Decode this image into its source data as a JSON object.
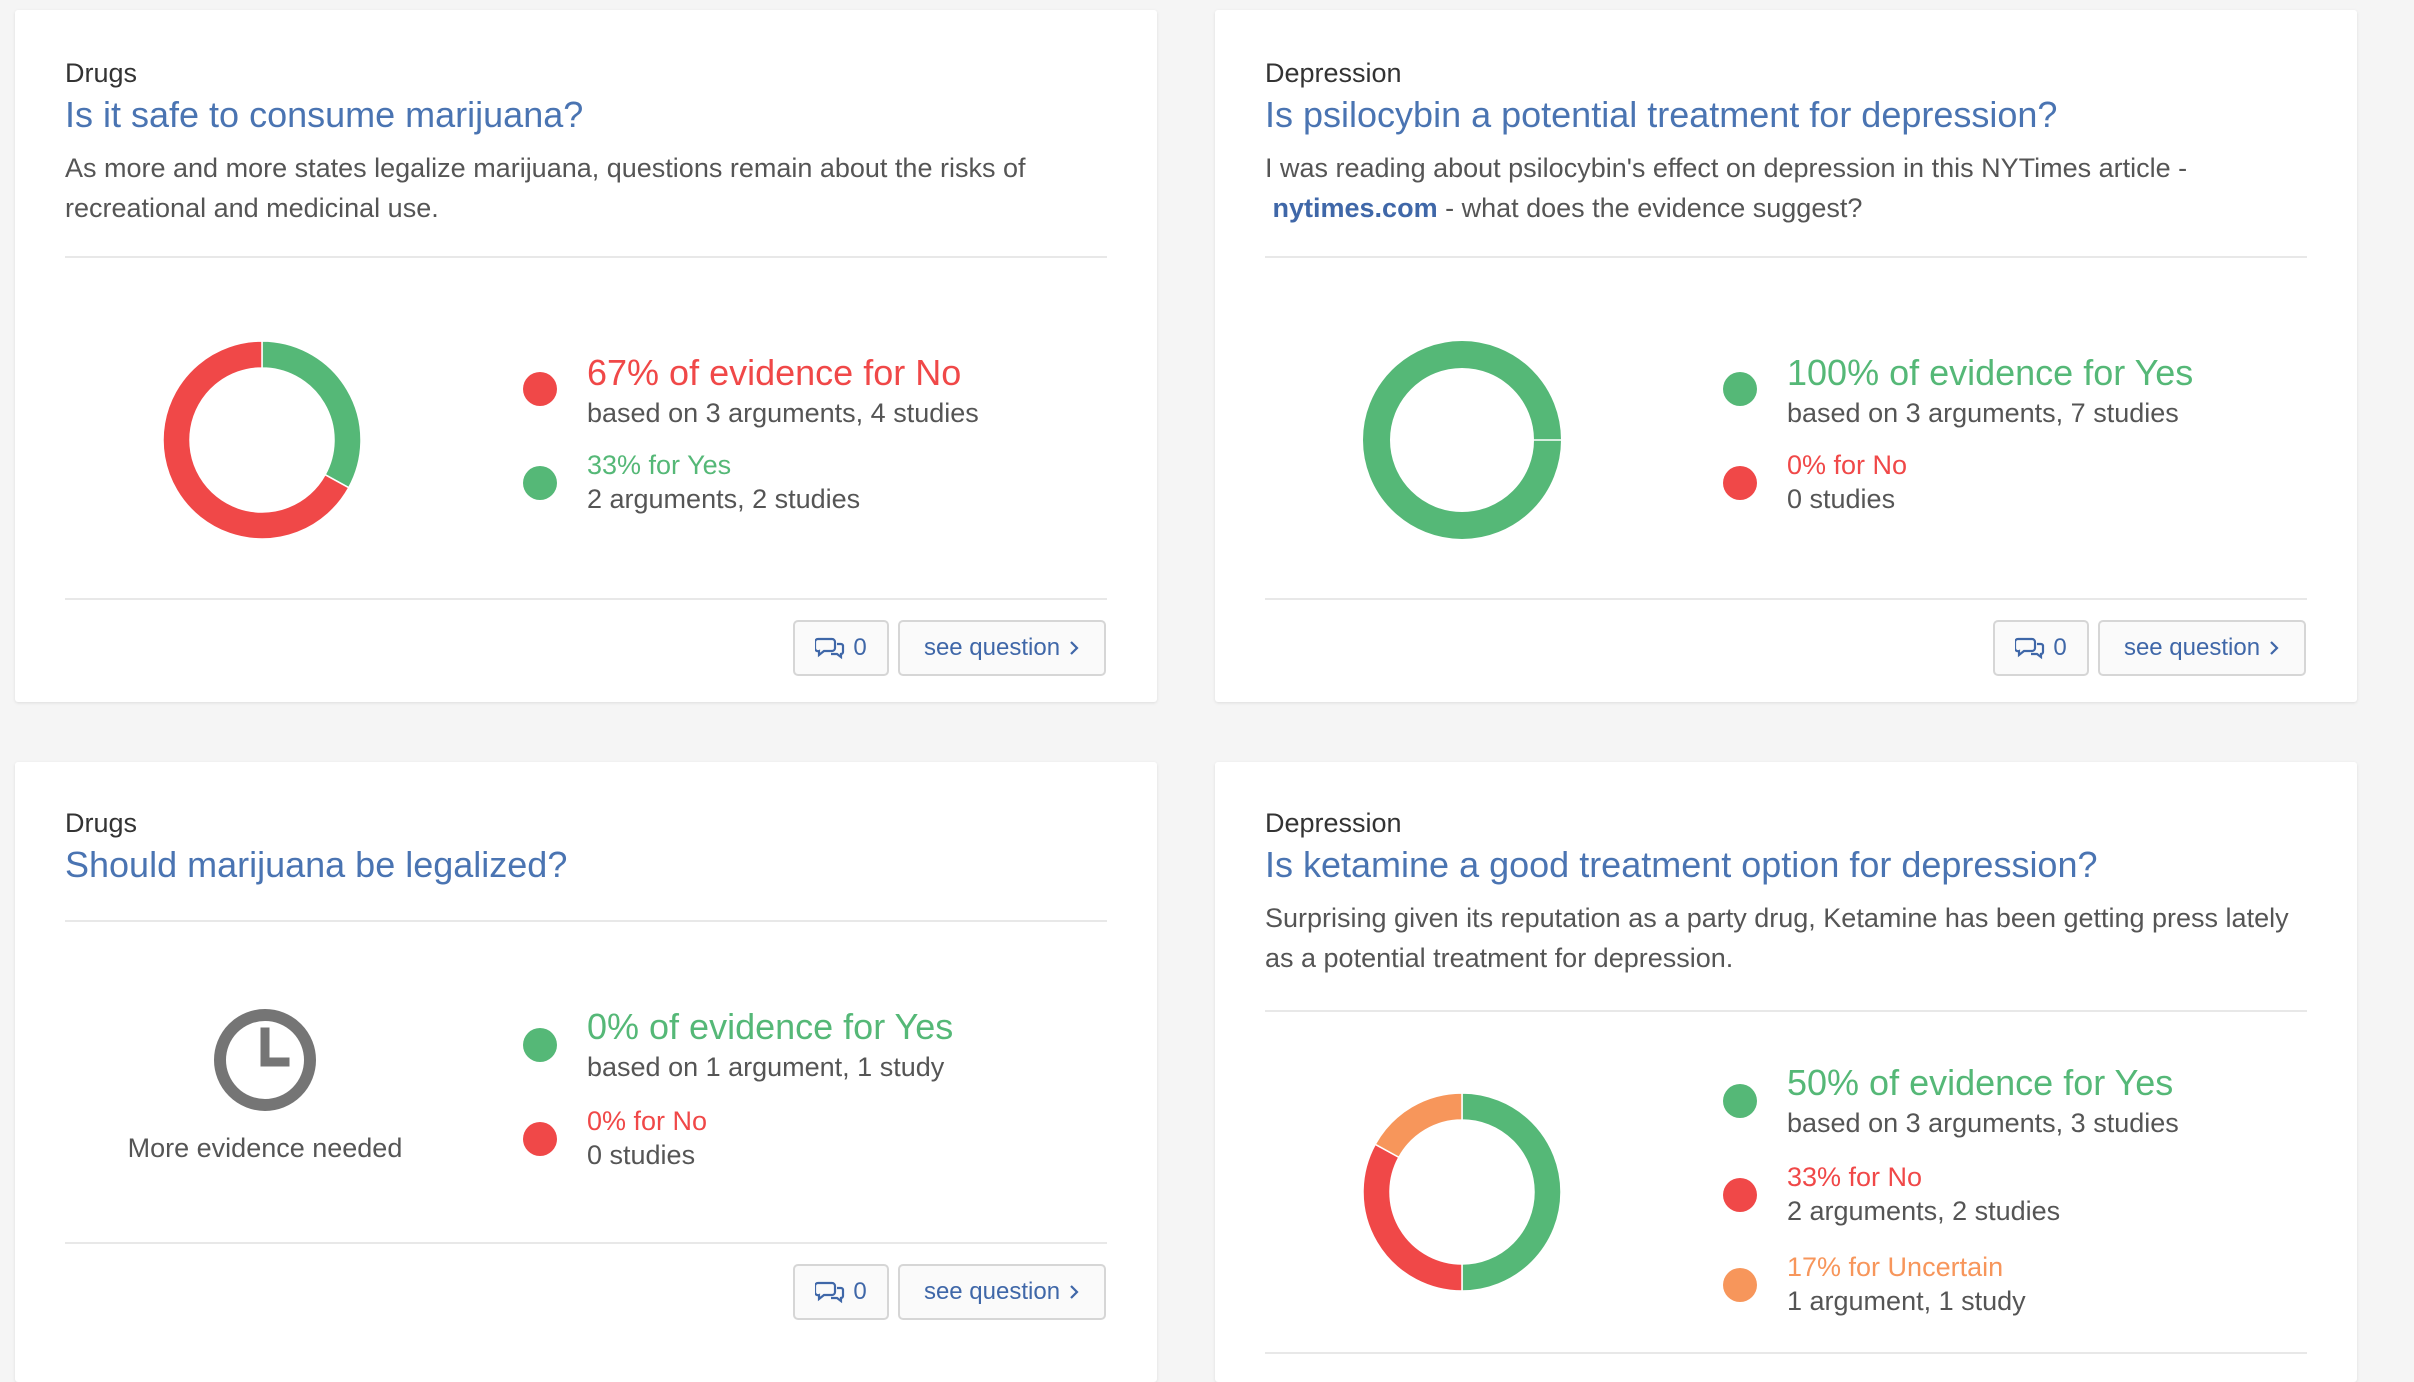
{
  "colors": {
    "yes": "#55b877",
    "no": "#f04848",
    "uncertain": "#f7965b",
    "link": "#4a74b2",
    "clock": "#757575"
  },
  "icons": {
    "comments": "comments-icon",
    "chevron": "chevron-right-icon",
    "clock": "clock-icon"
  },
  "cards": [
    {
      "category": "Drugs",
      "title": "Is it safe to consume marijuana?",
      "description": "As more and more states legalize marijuana, questions remain about the risks of recreational and medicinal use.",
      "primary_text": "67% of evidence for No",
      "primary_sub": "based on 3 arguments, 4 studies",
      "secondary_text": "33% for Yes",
      "secondary_sub": "2 arguments, 2 studies",
      "comment_count": "0",
      "see_question_label": "see question",
      "chart": {
        "type": "donut",
        "segments": [
          {
            "label": "Yes",
            "value": 33,
            "color": "#55b877"
          },
          {
            "label": "No",
            "value": 67,
            "color": "#f04848"
          }
        ]
      }
    },
    {
      "category": "Depression",
      "title": "Is psilocybin a potential treatment for depression?",
      "description_before": "I was reading about psilocybin's effect on depression in this NYTimes article -",
      "description_link": "nytimes.com",
      "description_after": " - what does the evidence suggest?",
      "primary_text": "100% of evidence for Yes",
      "primary_sub": "based on 3 arguments, 7 studies",
      "secondary_text": "0% for No",
      "secondary_sub": "0 studies",
      "comment_count": "0",
      "see_question_label": "see question",
      "chart": {
        "type": "donut",
        "segments": [
          {
            "label": "Yes",
            "value": 100,
            "color": "#55b877"
          }
        ]
      }
    },
    {
      "category": "Drugs",
      "title": "Should marijuana be legalized?",
      "clock_caption": "More evidence needed",
      "primary_text": "0% of evidence for Yes",
      "primary_sub": "based on 1 argument, 1 study",
      "secondary_text": "0% for No",
      "secondary_sub": "0 studies",
      "comment_count": "0",
      "see_question_label": "see question"
    },
    {
      "category": "Depression",
      "title": "Is ketamine a good treatment option for depression?",
      "description": "Surprising given its reputation as a party drug, Ketamine has been getting press lately as a potential treatment for depression.",
      "primary_text": "50% of evidence for Yes",
      "primary_sub": "based on 3 arguments, 3 studies",
      "secondary_text": "33% for No",
      "secondary_sub": "2 arguments, 2 studies",
      "tertiary_text": "17% for Uncertain",
      "tertiary_sub": "1 argument, 1 study",
      "chart": {
        "type": "donut",
        "segments": [
          {
            "label": "Yes",
            "value": 50,
            "color": "#55b877"
          },
          {
            "label": "No",
            "value": 33,
            "color": "#f04848"
          },
          {
            "label": "Uncertain",
            "value": 17,
            "color": "#f7965b"
          }
        ]
      }
    }
  ]
}
